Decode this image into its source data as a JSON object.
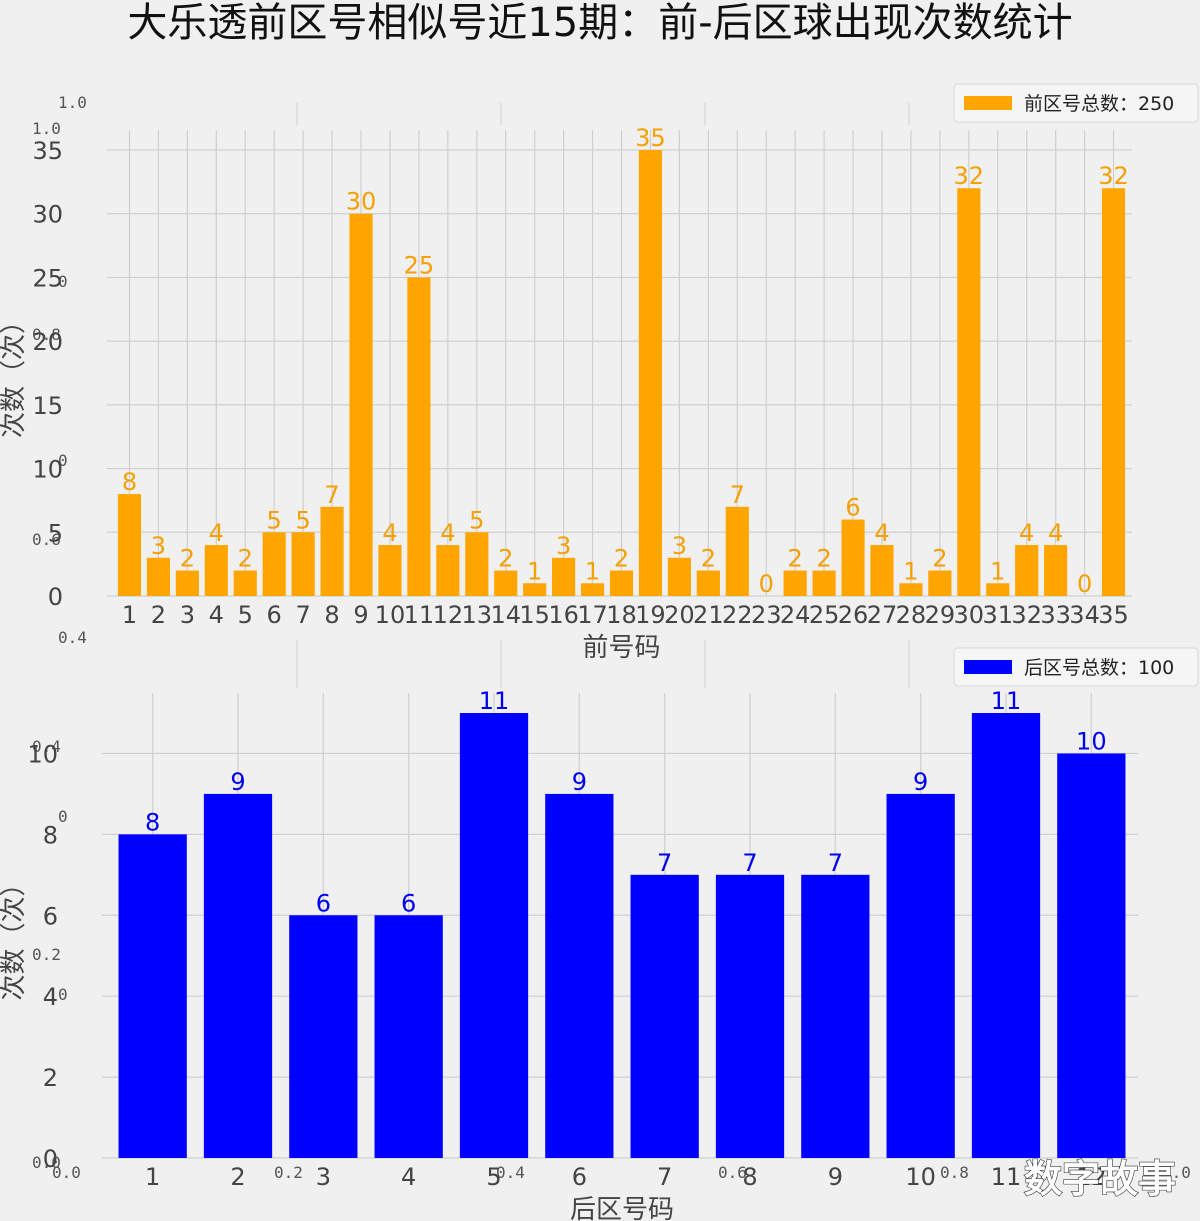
{
  "title": "大乐透前区号相似号近15期：前-后区球出现次数统计",
  "watermark": "数字故事",
  "colors": {
    "front": "#FFA500",
    "back": "#0000FF",
    "grid": "#cfcfcf",
    "background": "#f0f0f0"
  },
  "ghost_ticks": {
    "top_y": [
      "1.0",
      "1.0",
      "0",
      "0.8",
      "0",
      "0.6",
      "0.4"
    ],
    "bottom_y": [
      "0.4",
      "0",
      "0.2",
      "0",
      "0.0"
    ],
    "bottom_x": [
      "0.0",
      "0.2",
      "0.4",
      "0.6",
      "0.8",
      "1.0"
    ]
  },
  "chart_data": [
    {
      "type": "bar",
      "name": "front",
      "categories": [
        "1",
        "2",
        "3",
        "4",
        "5",
        "6",
        "7",
        "8",
        "9",
        "10",
        "11",
        "12",
        "13",
        "14",
        "15",
        "16",
        "17",
        "18",
        "19",
        "20",
        "21",
        "22",
        "23",
        "24",
        "25",
        "26",
        "27",
        "28",
        "29",
        "30",
        "31",
        "32",
        "33",
        "34",
        "35"
      ],
      "series": [
        {
          "name": "前区号总数：250",
          "values": [
            8,
            3,
            2,
            4,
            2,
            5,
            5,
            7,
            30,
            4,
            25,
            4,
            5,
            2,
            1,
            3,
            1,
            2,
            35,
            3,
            2,
            7,
            0,
            2,
            2,
            6,
            4,
            1,
            2,
            32,
            1,
            4,
            4,
            0,
            32
          ]
        }
      ],
      "xlabel": "前号码",
      "ylabel": "次数（次）",
      "ylim": [
        0,
        35
      ],
      "yticks": [
        0,
        5,
        10,
        15,
        20,
        25,
        30,
        35
      ],
      "grid": true,
      "legend": "top-right"
    },
    {
      "type": "bar",
      "name": "back",
      "categories": [
        "1",
        "2",
        "3",
        "4",
        "5",
        "6",
        "7",
        "8",
        "9",
        "10",
        "11",
        "12"
      ],
      "series": [
        {
          "name": "后区号总数：100",
          "values": [
            8,
            9,
            6,
            6,
            11,
            9,
            7,
            7,
            7,
            9,
            11,
            10
          ]
        }
      ],
      "xlabel": "后区号码",
      "ylabel": "次数（次）",
      "ylim": [
        0,
        11
      ],
      "yticks": [
        0,
        2,
        4,
        6,
        8,
        10
      ],
      "grid": true,
      "legend": "top-right"
    }
  ]
}
